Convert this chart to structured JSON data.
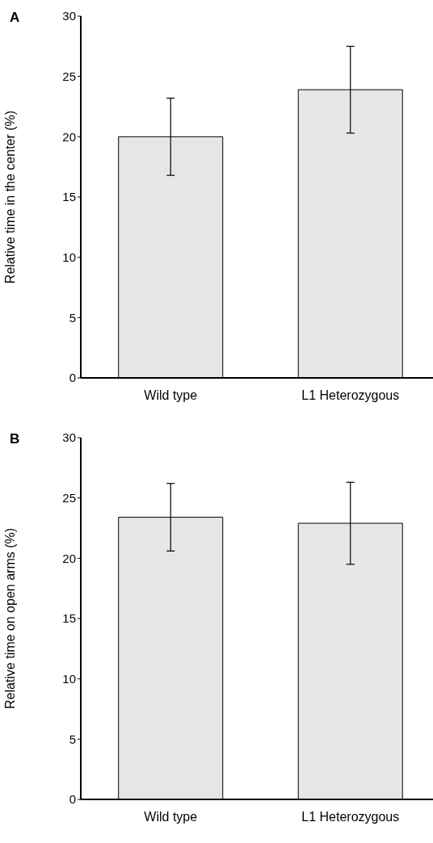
{
  "chart_data": [
    {
      "type": "bar",
      "title": "A",
      "ylabel": "Relative time in the center (%)",
      "categories": [
        "Wild type",
        "L1 Heterozygous"
      ],
      "values": [
        20,
        23.9
      ],
      "errors": [
        3.2,
        3.6
      ],
      "color": "#e6e6e6",
      "ylim": [
        0,
        30
      ],
      "yticks": [
        0,
        5,
        10,
        15,
        20,
        25,
        30
      ]
    },
    {
      "type": "bar",
      "title": "B",
      "ylabel": "Relative time on open arms (%)",
      "categories": [
        "Wild type",
        "L1 Heterozygous"
      ],
      "values": [
        23.4,
        22.9
      ],
      "errors": [
        2.8,
        3.4
      ],
      "color": "#e6e6e6",
      "ylim": [
        0,
        30
      ],
      "yticks": [
        0,
        5,
        10,
        15,
        20,
        25,
        30
      ]
    }
  ]
}
